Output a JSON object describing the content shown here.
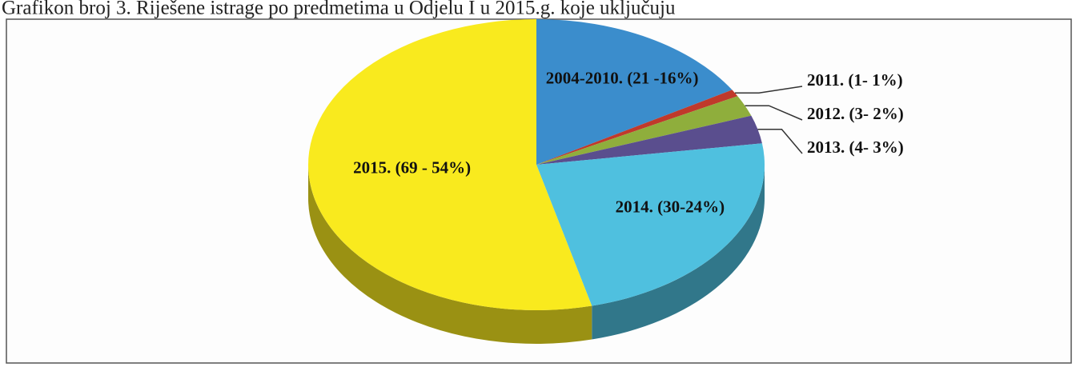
{
  "chart_data": {
    "type": "pie",
    "title": "Grafikon broj 3. Riješene istrage po predmetima u Odjelu I u 2015.g. koje uključuju",
    "categories": [
      "2004-2010. (21 -16%)",
      "2011. (1- 1%)",
      "2012. (3- 2%)",
      "2013. (4- 3%)",
      "2014. (30-24%)",
      "2015. (69 - 54%)"
    ],
    "values": [
      21,
      1,
      3,
      4,
      30,
      69
    ],
    "colors": [
      "#3b8dcc",
      "#c0392b",
      "#8fae3c",
      "#5a4e8e",
      "#4fc0df",
      "#f9ea1e"
    ],
    "start_angle": -90,
    "direction": "clockwise"
  }
}
